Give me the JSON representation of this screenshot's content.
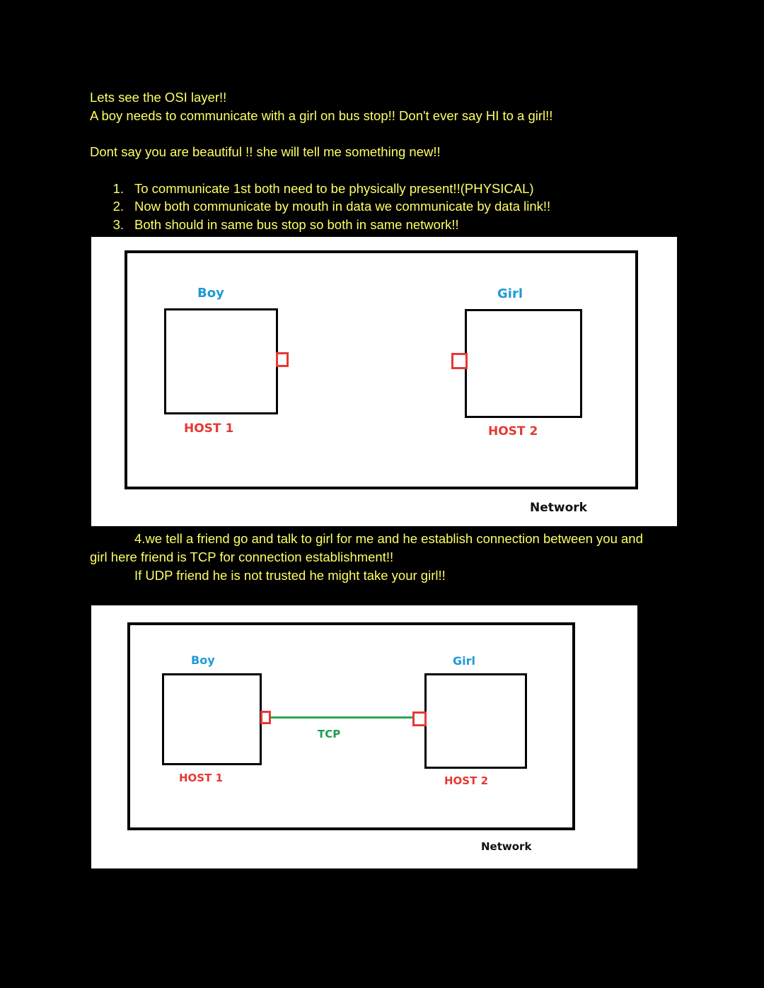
{
  "intro": {
    "line1": "Lets see the OSI layer!!",
    "line2": "A boy needs to communicate with a girl on bus stop!! Don't ever say HI to a girl!!",
    "line3": "Dont say you are beautiful !! she will tell me something new!!"
  },
  "list": [
    {
      "num": "1.",
      "text": "To communicate 1st both need to be physically present!!(PHYSICAL)"
    },
    {
      "num": "2.",
      "text": "Now both communicate by mouth in data we communicate by data link!!"
    },
    {
      "num": "3.",
      "text": "Both should in same bus stop so both in same network!!"
    }
  ],
  "diagram1": {
    "boy_label": "Boy",
    "girl_label": "Girl",
    "host1_label": "HOST 1",
    "host2_label": "HOST 2",
    "network_label": "Network"
  },
  "para4": {
    "line1": "4.we tell a friend go and talk to girl for me and he establish connection between you and",
    "line2": "girl here friend is TCP for connection establishment!!",
    "line3": "If UDP friend he is not trusted he might take your girl!!"
  },
  "diagram2": {
    "boy_label": "Boy",
    "girl_label": "Girl",
    "host1_label": "HOST 1",
    "host2_label": "HOST 2",
    "link_label": "TCP",
    "network_label": "Network"
  },
  "colors": {
    "text": "#ffff66",
    "host_label": "#e53935",
    "name_label": "#1e9ad6",
    "tcp": "#2ea44f"
  }
}
